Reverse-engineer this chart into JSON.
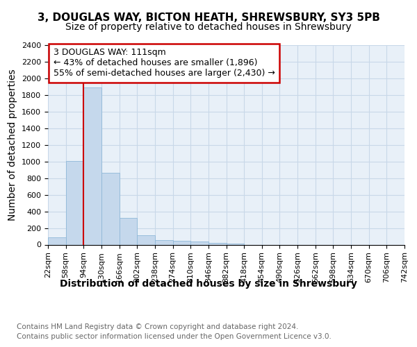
{
  "title_line1": "3, DOUGLAS WAY, BICTON HEATH, SHREWSBURY, SY3 5PB",
  "title_line2": "Size of property relative to detached houses in Shrewsbury",
  "xlabel": "Distribution of detached houses by size in Shrewsbury",
  "ylabel": "Number of detached properties",
  "bar_values": [
    90,
    1010,
    1890,
    860,
    320,
    115,
    55,
    50,
    35,
    20,
    10,
    0,
    0,
    0,
    0,
    0,
    0,
    0,
    0,
    0
  ],
  "bar_labels": [
    "22sqm",
    "58sqm",
    "94sqm",
    "130sqm",
    "166sqm",
    "202sqm",
    "238sqm",
    "274sqm",
    "310sqm",
    "346sqm",
    "382sqm",
    "418sqm",
    "454sqm",
    "490sqm",
    "526sqm",
    "562sqm",
    "598sqm",
    "634sqm",
    "670sqm",
    "706sqm",
    "742sqm"
  ],
  "bar_color": "#c5d8ec",
  "bar_edge_color": "#8fb8d8",
  "annotation_title": "3 DOUGLAS WAY: 111sqm",
  "annotation_line1": "← 43% of detached houses are smaller (1,896)",
  "annotation_line2": "55% of semi-detached houses are larger (2,430) →",
  "vline_color": "#cc0000",
  "annotation_box_color": "#ffffff",
  "annotation_box_edge": "#cc0000",
  "ylim": [
    0,
    2400
  ],
  "yticks": [
    0,
    200,
    400,
    600,
    800,
    1000,
    1200,
    1400,
    1600,
    1800,
    2000,
    2200,
    2400
  ],
  "grid_color": "#c8d8e8",
  "bg_color": "#e8f0f8",
  "footer_line1": "Contains HM Land Registry data © Crown copyright and database right 2024.",
  "footer_line2": "Contains public sector information licensed under the Open Government Licence v3.0.",
  "title1_fontsize": 11,
  "title2_fontsize": 10,
  "axis_label_fontsize": 10,
  "tick_fontsize": 8,
  "annotation_fontsize": 9,
  "footer_fontsize": 7.5
}
